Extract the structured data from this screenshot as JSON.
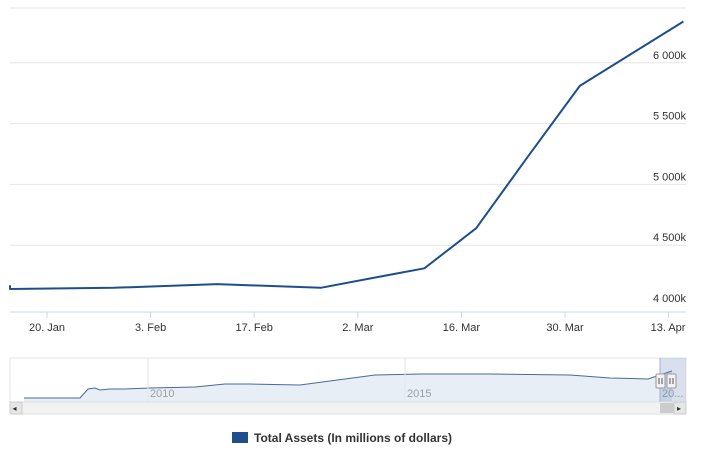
{
  "chart_data": {
    "type": "line",
    "title": "",
    "xlabel": "",
    "ylabel": "",
    "x_ticks": [
      "20. Jan",
      "3. Feb",
      "17. Feb",
      "2. Mar",
      "16. Mar",
      "30. Mar",
      "13. Apr"
    ],
    "y_ticks": [
      "4 000k",
      "4 500k",
      "5 000k",
      "5 500k",
      "6 000k"
    ],
    "ylim": [
      4000,
      6400
    ],
    "grid": true,
    "legend_position": "bottom-center",
    "series": [
      {
        "name": "Total Assets (In millions of dollars)",
        "color": "#1f4e8c",
        "x": [
          "2020-01-08",
          "2020-01-15",
          "2020-01-29",
          "2020-02-12",
          "2020-02-26",
          "2020-03-04",
          "2020-03-11",
          "2020-03-18",
          "2020-03-25",
          "2020-04-01",
          "2020-04-15"
        ],
        "y": [
          4170,
          4140,
          4150,
          4180,
          4150,
          4230,
          4310,
          4640,
          5230,
          5810,
          6340
        ]
      }
    ],
    "navigator": {
      "year_labels": [
        "2010",
        "2015",
        "20..."
      ],
      "scroll_left_arrow": "◂",
      "scroll_right_arrow": "▸"
    }
  },
  "legend": {
    "label": "Total Assets (In millions of dollars)",
    "color": "#1f4e8c"
  }
}
